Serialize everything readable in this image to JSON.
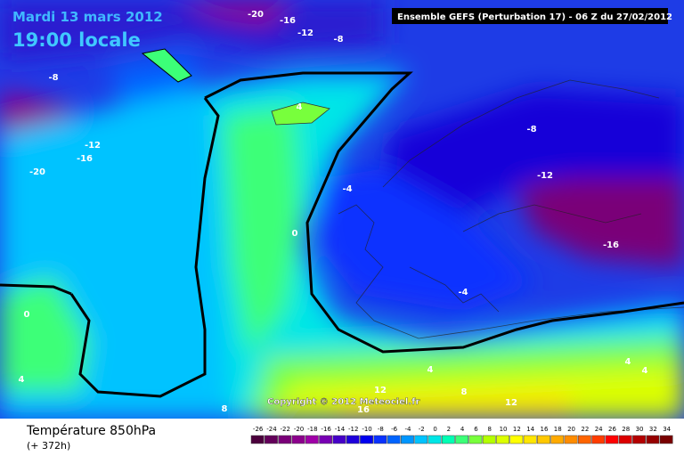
{
  "header": {
    "date": "Mardi 13 mars 2012",
    "time": "19:00 locale",
    "model": "Ensemble GEFS (Perturbation 17)  -  06 Z du 27/02/2012"
  },
  "copyright": "Copyright © 2012 Meteociel.fr",
  "footer": {
    "title": "Température 850hPa",
    "lead": "(+ 372h)"
  },
  "contour_labels": [
    -20,
    -16,
    -12,
    -8,
    -8,
    4,
    -12,
    -16,
    -20,
    -8,
    -12,
    -4,
    0,
    -16,
    -4,
    0,
    4,
    4,
    4,
    4,
    8,
    8,
    12,
    12,
    16
  ],
  "legend": {
    "labels": [
      -26,
      -24,
      -22,
      -20,
      -18,
      -16,
      -14,
      -12,
      -10,
      -8,
      -6,
      -4,
      -2,
      0,
      2,
      4,
      6,
      8,
      10,
      12,
      14,
      16,
      18,
      20,
      22,
      24,
      26,
      28,
      30,
      32,
      34
    ],
    "colors": [
      "#4b003c",
      "#63005a",
      "#7a0078",
      "#8c008c",
      "#a000a8",
      "#7800b4",
      "#4600c8",
      "#1e00dc",
      "#0000f0",
      "#0a32ff",
      "#0064ff",
      "#0096ff",
      "#00c3ff",
      "#00e6e6",
      "#00ffb4",
      "#3cff78",
      "#78ff3c",
      "#b4ff00",
      "#dcff00",
      "#ffff00",
      "#ffe600",
      "#ffc800",
      "#ffaa00",
      "#ff8c00",
      "#ff6400",
      "#ff3c00",
      "#ff0000",
      "#dc0000",
      "#b40000",
      "#960000",
      "#780000"
    ]
  }
}
